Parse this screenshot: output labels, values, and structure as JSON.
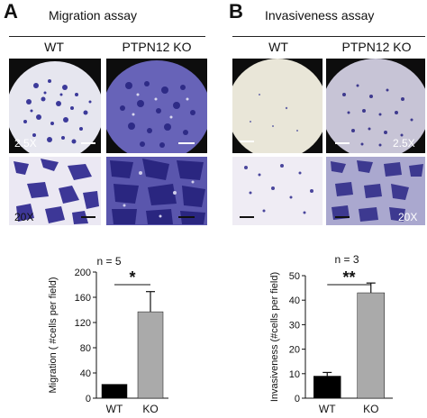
{
  "panels": [
    {
      "letter": "A",
      "title": "Migration assay",
      "conditions": [
        "WT",
        "PTPN12 KO"
      ],
      "magnifications": {
        "low": "2.5X",
        "high": "20X"
      },
      "stats": {
        "n_label": "n = 5",
        "significance": "*"
      },
      "colors": {
        "WT": "#000000",
        "KO": "#aaaaaa"
      }
    },
    {
      "letter": "B",
      "title": "Invasiveness assay",
      "conditions": [
        "WT",
        "PTPN12 KO"
      ],
      "magnifications": {
        "low": "2.5X",
        "high": "20X"
      },
      "stats": {
        "n_label": "n = 3",
        "significance": "**"
      },
      "colors": {
        "WT": "#000000",
        "KO": "#aaaaaa"
      }
    }
  ],
  "chart_data": [
    {
      "type": "bar",
      "categories": [
        "WT",
        "KO"
      ],
      "values": [
        22,
        137
      ],
      "errors": [
        0,
        32
      ],
      "ylabel": "Migration ( #cells per field)",
      "xlabel": "",
      "ylim": [
        0,
        200
      ],
      "yticks": [
        0,
        40,
        80,
        120,
        160,
        200
      ],
      "colors": [
        "#000000",
        "#aaaaaa"
      ]
    },
    {
      "type": "bar",
      "categories": [
        "WT",
        "KO"
      ],
      "values": [
        9,
        43
      ],
      "errors": [
        1.5,
        4
      ],
      "ylabel": "Invasiveness (#cells per field)",
      "xlabel": "",
      "ylim": [
        0,
        50
      ],
      "yticks": [
        0,
        10,
        20,
        30,
        40,
        50
      ],
      "colors": [
        "#000000",
        "#aaaaaa"
      ]
    }
  ]
}
